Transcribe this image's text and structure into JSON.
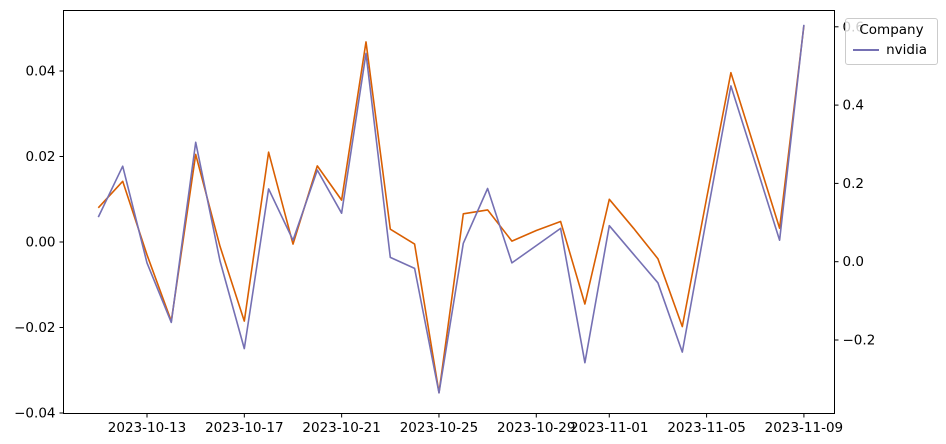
{
  "chart_data": {
    "type": "line",
    "grid": false,
    "background_color": "#ffffff",
    "spine_color": "#000000",
    "x": [
      "2023-10-11",
      "2023-10-12",
      "2023-10-13",
      "2023-10-14",
      "2023-10-15",
      "2023-10-16",
      "2023-10-17",
      "2023-10-18",
      "2023-10-19",
      "2023-10-20",
      "2023-10-21",
      "2023-10-22",
      "2023-10-23",
      "2023-10-24",
      "2023-10-25",
      "2023-10-26",
      "2023-10-27",
      "2023-10-28",
      "2023-10-29",
      "2023-10-30",
      "2023-10-31",
      "2023-11-01",
      "2023-11-02",
      "2023-11-03",
      "2023-11-04",
      "2023-11-05",
      "2023-11-06",
      "2023-11-07",
      "2023-11-08",
      "2023-11-09"
    ],
    "series": [
      {
        "name": "",
        "axis": "left",
        "color": "#d95f02",
        "values": [
          0.008,
          0.0142,
          -0.003,
          -0.0185,
          0.0205,
          -0.001,
          -0.0185,
          0.021,
          -0.0005,
          0.0178,
          0.0098,
          0.0468,
          0.003,
          -0.0005,
          -0.0352,
          0.0066,
          0.0075,
          0.0002,
          0.0027,
          0.0048,
          -0.0145,
          0.01,
          0.0032,
          -0.0039,
          -0.0198,
          0.0102,
          0.0396,
          0.0214,
          0.0032,
          0.0506
        ]
      },
      {
        "name": "nvidia",
        "axis": "right",
        "color": "#7570b3",
        "values": [
          0.114,
          0.244,
          -0.003,
          -0.155,
          0.305,
          0.002,
          -0.222,
          0.186,
          0.055,
          0.234,
          0.124,
          0.532,
          0.011,
          -0.017,
          -0.335,
          0.047,
          0.187,
          -0.003,
          0.041,
          0.085,
          -0.258,
          0.092,
          0.019,
          -0.054,
          -0.231,
          0.112,
          0.449,
          0.252,
          0.055,
          0.605
        ]
      }
    ],
    "x_ticks": [
      {
        "date": "2023-10-13",
        "label": "2023-10-13"
      },
      {
        "date": "2023-10-17",
        "label": "2023-10-17"
      },
      {
        "date": "2023-10-21",
        "label": "2023-10-21"
      },
      {
        "date": "2023-10-25",
        "label": "2023-10-25"
      },
      {
        "date": "2023-10-29",
        "label": "2023-10-29"
      },
      {
        "date": "2023-11-01",
        "label": "2023-11-01"
      },
      {
        "date": "2023-11-05",
        "label": "2023-11-05"
      },
      {
        "date": "2023-11-09",
        "label": "2023-11-09"
      }
    ],
    "left_axis": {
      "tick_values": [
        0.04,
        0.02,
        0,
        -0.02,
        -0.04
      ],
      "tick_labels": [
        "0.04",
        "0.02",
        "0.00",
        "−0.02",
        "−0.04"
      ],
      "range": [
        -0.0401,
        0.0542
      ]
    },
    "right_axis": {
      "tick_values": [
        0.6,
        0.4,
        0.2,
        0.0,
        -0.2
      ],
      "tick_labels": [
        "0.6",
        "0.4",
        "0.2",
        "0.0",
        "−0.2"
      ],
      "range": [
        -0.388,
        0.642
      ]
    },
    "legend": {
      "title": "Company",
      "entries": [
        {
          "label": "nvidia",
          "color": "#7570b3"
        }
      ]
    }
  }
}
